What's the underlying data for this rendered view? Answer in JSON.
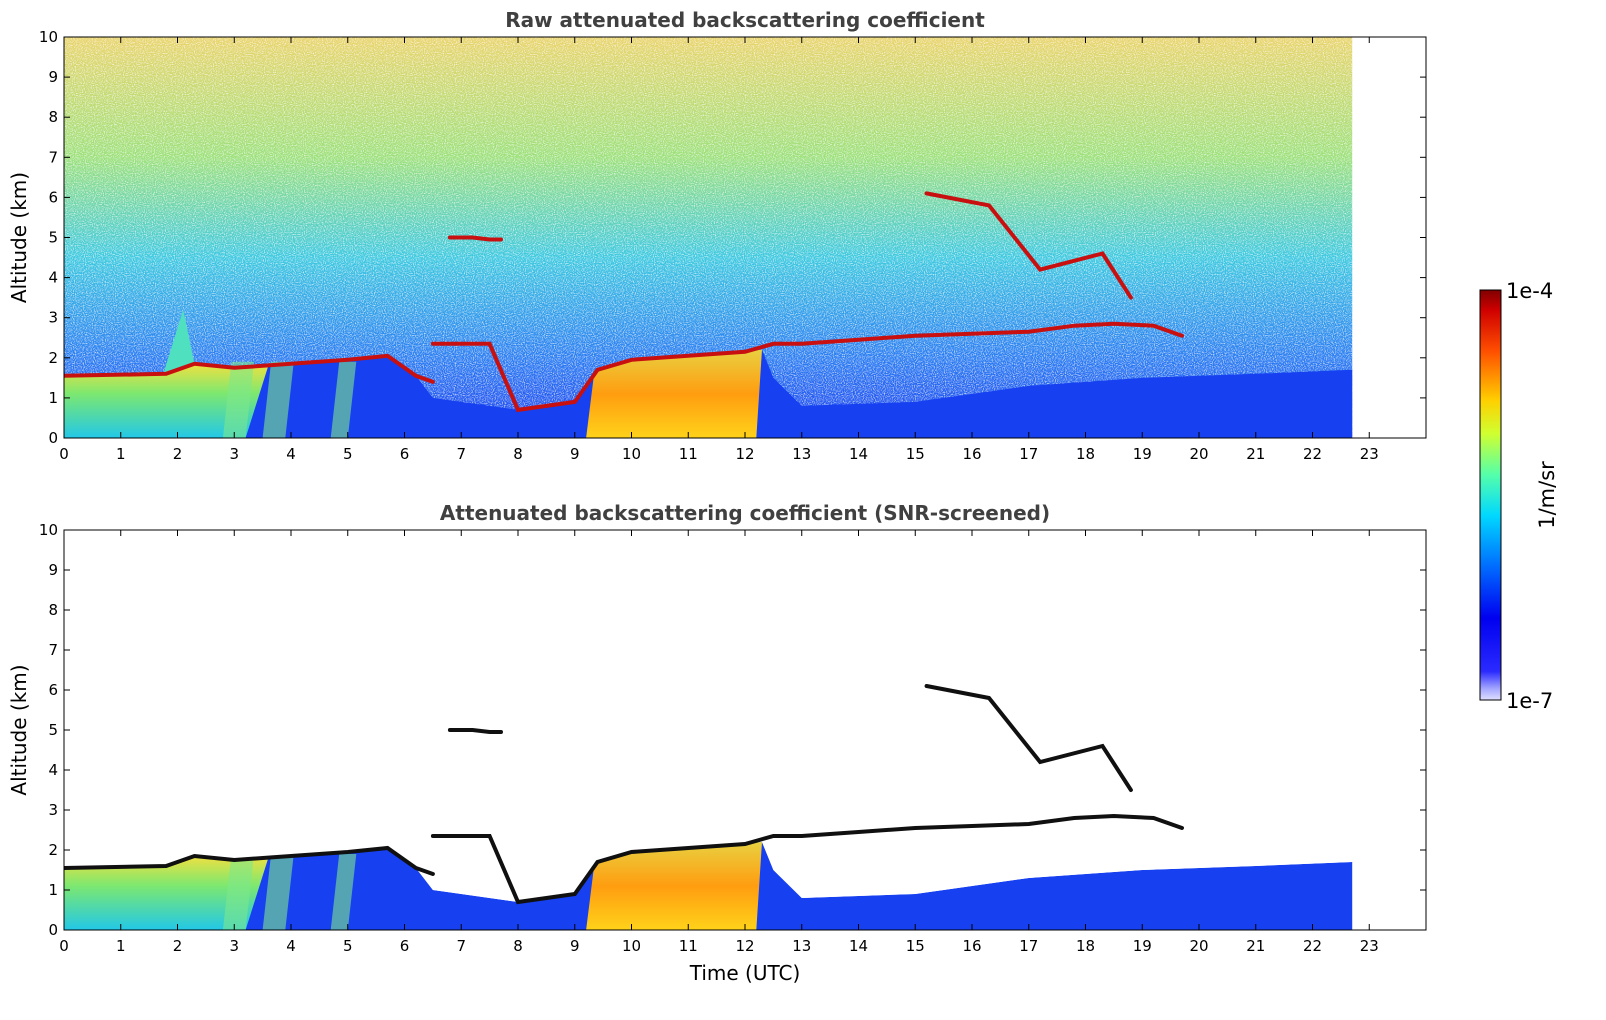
{
  "chart_data": [
    {
      "type": "heatmap",
      "title": "Raw attenuated backscattering coefficient",
      "xlabel": "",
      "ylabel": "Altitude (km)",
      "xlim": [
        0,
        24
      ],
      "ylim": [
        0,
        10
      ],
      "xticks": [
        "0",
        "1",
        "2",
        "3",
        "4",
        "5",
        "6",
        "7",
        "8",
        "9",
        "10",
        "11",
        "12",
        "13",
        "14",
        "15",
        "16",
        "17",
        "18",
        "19",
        "20",
        "21",
        "22",
        "23"
      ],
      "yticks": [
        "0",
        "1",
        "2",
        "3",
        "4",
        "5",
        "6",
        "7",
        "8",
        "9",
        "10"
      ],
      "data_end_hour": 22.7,
      "colormap": "jet",
      "features": [
        {
          "name": "boundary layer aerosol top",
          "points": [
            [
              0,
              1.55
            ],
            [
              1.8,
              1.6
            ],
            [
              2.3,
              1.85
            ],
            [
              3,
              1.75
            ],
            [
              4,
              1.85
            ],
            [
              5,
              1.95
            ],
            [
              5.7,
              2.05
            ],
            [
              6.2,
              1.55
            ],
            [
              6.5,
              1.4
            ]
          ]
        },
        {
          "name": "lofted thin layer",
          "points": [
            [
              6.5,
              2.35
            ],
            [
              7.5,
              2.35
            ],
            [
              8,
              0.7
            ],
            [
              9,
              0.9
            ],
            [
              9.4,
              1.7
            ],
            [
              10,
              1.95
            ],
            [
              11,
              2.05
            ],
            [
              12,
              2.15
            ],
            [
              12.5,
              2.35
            ],
            [
              13,
              2.35
            ],
            [
              14,
              2.45
            ],
            [
              15,
              2.55
            ],
            [
              16,
              2.6
            ],
            [
              17,
              2.65
            ],
            [
              17.8,
              2.8
            ],
            [
              18.5,
              2.85
            ],
            [
              19.2,
              2.8
            ],
            [
              19.7,
              2.55
            ]
          ]
        },
        {
          "name": "mid-level cloud",
          "points": [
            [
              6.8,
              5.0
            ],
            [
              7.2,
              5.0
            ],
            [
              7.5,
              4.95
            ],
            [
              7.7,
              4.95
            ]
          ]
        },
        {
          "name": "virga streaks",
          "points": [
            [
              15.2,
              6.1
            ],
            [
              16.3,
              5.8
            ],
            [
              17.2,
              4.2
            ],
            [
              18.3,
              4.6
            ],
            [
              18.8,
              3.5
            ]
          ]
        }
      ]
    },
    {
      "type": "heatmap",
      "title": "Attenuated backscattering coefficient (SNR-screened)",
      "xlabel": "Time (UTC)",
      "ylabel": "Altitude (km)",
      "xlim": [
        0,
        24
      ],
      "ylim": [
        0,
        10
      ],
      "xticks": [
        "0",
        "1",
        "2",
        "3",
        "4",
        "5",
        "6",
        "7",
        "8",
        "9",
        "10",
        "11",
        "12",
        "13",
        "14",
        "15",
        "16",
        "17",
        "18",
        "19",
        "20",
        "21",
        "22",
        "23"
      ],
      "yticks": [
        "0",
        "1",
        "2",
        "3",
        "4",
        "5",
        "6",
        "7",
        "8",
        "9",
        "10"
      ],
      "data_end_hour": 22.7,
      "colormap": "jet"
    }
  ],
  "colorbar": {
    "max_label": "1e-4",
    "min_label": "1e-7",
    "unit": "1/m/sr",
    "scale": "log",
    "range": [
      1e-07,
      0.0001
    ]
  }
}
